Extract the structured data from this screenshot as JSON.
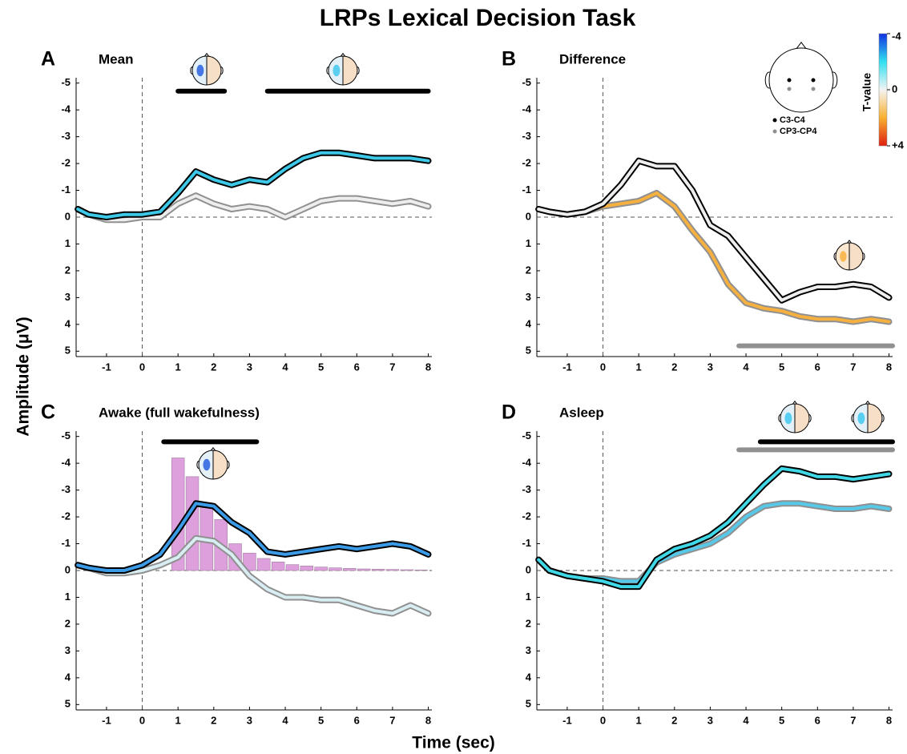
{
  "title": "LRPs Lexical Decision Task",
  "x_label": "Time (sec)",
  "y_label": "Amplitude (μV)",
  "legend": [
    {
      "name": "C3-C4",
      "color": "#000000"
    },
    {
      "name": "CP3-CP4",
      "color": "#909090"
    }
  ],
  "colorbar": {
    "label": "T-value",
    "lim": [
      -4,
      4
    ],
    "ticks": [
      -4,
      0,
      {
        "value": 4,
        "label": "+4"
      }
    ]
  },
  "chart_data": [
    {
      "type": "line",
      "letter": "A",
      "title": "Mean",
      "x": [
        -1.8,
        -1.5,
        -1,
        -0.5,
        0,
        0.5,
        1,
        1.5,
        2,
        2.5,
        3,
        3.5,
        4,
        4.5,
        5,
        5.5,
        6,
        6.5,
        7,
        7.5,
        8
      ],
      "series": [
        {
          "color": "#000000",
          "fill": "#3cc8e6",
          "values": [
            -0.3,
            -0.1,
            0,
            -0.1,
            -0.1,
            -0.2,
            -0.9,
            -1.7,
            -1.4,
            -1.2,
            -1.4,
            -1.3,
            -1.8,
            -2.2,
            -2.4,
            -2.4,
            -2.3,
            -2.2,
            -2.2,
            -2.2,
            -2.1
          ]
        },
        {
          "color": "#909090",
          "fill": "#eeeeee",
          "values": [
            -0.3,
            -0.1,
            0.1,
            0.1,
            0,
            0,
            -0.5,
            -0.8,
            -0.5,
            -0.3,
            -0.4,
            -0.3,
            0,
            -0.3,
            -0.6,
            -0.7,
            -0.7,
            -0.6,
            -0.5,
            -0.6,
            -0.4
          ]
        }
      ],
      "sig_bars": [
        {
          "start": 1.0,
          "end": 2.3,
          "y": -4.7,
          "color": "#000000"
        },
        {
          "start": 3.5,
          "end": 8.0,
          "y": -4.7,
          "color": "#000000"
        }
      ],
      "hline": 0,
      "vline": 0,
      "xlim": [
        -1.85,
        8.1
      ],
      "ylim": [
        5.2,
        -5.2
      ],
      "xticks": [
        -1,
        0,
        1,
        2,
        3,
        4,
        5,
        6,
        7,
        8
      ],
      "yticks": [
        -5,
        -4,
        -3,
        -2,
        -1,
        0,
        1,
        2,
        3,
        4,
        5
      ]
    },
    {
      "type": "line",
      "letter": "B",
      "title": "Difference",
      "x": [
        -1.8,
        -1.5,
        -1,
        -0.5,
        0,
        0.5,
        1,
        1.5,
        2,
        2.5,
        3,
        3.5,
        4,
        4.5,
        5,
        5.5,
        6,
        6.5,
        7,
        7.5,
        8
      ],
      "series": [
        {
          "color": "#000000",
          "fill": "#eeeeee",
          "values": [
            -0.3,
            -0.2,
            -0.1,
            -0.2,
            -0.5,
            -1.2,
            -2.1,
            -1.9,
            -1.9,
            -1,
            0.3,
            0.7,
            1.5,
            2.3,
            3.1,
            2.8,
            2.6,
            2.6,
            2.5,
            2.6,
            3
          ]
        },
        {
          "color": "#909090",
          "fill": "#f5b040",
          "values": [
            -0.3,
            -0.2,
            -0.1,
            -0.2,
            -0.4,
            -0.5,
            -0.6,
            -0.9,
            -0.4,
            0.5,
            1.3,
            2.5,
            3.2,
            3.4,
            3.5,
            3.7,
            3.8,
            3.8,
            3.9,
            3.8,
            3.9
          ]
        }
      ],
      "sig_bars": [
        {
          "start": 3.8,
          "end": 8.1,
          "y": 4.8,
          "color": "#909090"
        }
      ],
      "hline": 0,
      "vline": 0,
      "xlim": [
        -1.85,
        8.1
      ],
      "ylim": [
        5.2,
        -5.2
      ],
      "xticks": [
        -1,
        0,
        1,
        2,
        3,
        4,
        5,
        6,
        7,
        8
      ],
      "yticks": [
        -5,
        -4,
        -3,
        -2,
        -1,
        0,
        1,
        2,
        3,
        4,
        5
      ]
    },
    {
      "type": "line",
      "letter": "C",
      "title": "Awake (full wakefulness)",
      "x": [
        -1.8,
        -1.5,
        -1,
        -0.5,
        0,
        0.5,
        1,
        1.5,
        2,
        2.5,
        3,
        3.5,
        4,
        4.5,
        5,
        5.5,
        6,
        6.5,
        7,
        7.5,
        8
      ],
      "series": [
        {
          "color": "#000000",
          "fill": "#3c9be6",
          "values": [
            -0.2,
            -0.1,
            0,
            0,
            -0.2,
            -0.6,
            -1.5,
            -2.5,
            -2.4,
            -1.8,
            -1.4,
            -0.7,
            -0.6,
            -0.7,
            -0.8,
            -0.9,
            -0.8,
            -0.9,
            -1,
            -0.9,
            -0.6
          ]
        },
        {
          "color": "#909090",
          "fill": "#d8eef2",
          "values": [
            -0.2,
            -0.1,
            0.1,
            0.1,
            0,
            -0.2,
            -0.5,
            -1.2,
            -1.1,
            -0.6,
            0.2,
            0.7,
            1.0,
            1.0,
            1.1,
            1.1,
            1.3,
            1.5,
            1.6,
            1.3,
            1.6
          ]
        }
      ],
      "histogram": {
        "color": "#dda0dd",
        "bins": [
          0.8,
          1.2,
          1.6,
          2.0,
          2.4,
          2.8,
          3.2,
          3.6,
          4.0,
          4.4,
          4.8,
          5.2,
          5.6,
          6.0,
          6.4,
          6.8,
          7.2,
          7.6,
          8.0
        ],
        "values": [
          -4.2,
          -3.5,
          -2.5,
          -1.9,
          -1.0,
          -0.65,
          -0.45,
          -0.32,
          -0.22,
          -0.17,
          -0.13,
          -0.1,
          -0.08,
          -0.06,
          -0.05,
          -0.04,
          -0.03,
          -0.02
        ]
      },
      "sig_bars": [
        {
          "start": 0.6,
          "end": 3.2,
          "y": -4.8,
          "color": "#000000"
        }
      ],
      "hline": 0,
      "vline": 0,
      "xlim": [
        -1.85,
        8.1
      ],
      "ylim": [
        5.2,
        -5.2
      ],
      "xticks": [
        -1,
        0,
        1,
        2,
        3,
        4,
        5,
        6,
        7,
        8
      ],
      "yticks": [
        -5,
        -4,
        -3,
        -2,
        -1,
        0,
        1,
        2,
        3,
        4,
        5
      ]
    },
    {
      "type": "line",
      "letter": "D",
      "title": "Asleep",
      "x": [
        -1.8,
        -1.5,
        -1,
        -0.5,
        0,
        0.5,
        1,
        1.5,
        2,
        2.5,
        3,
        3.5,
        4,
        4.5,
        5,
        5.5,
        6,
        6.5,
        7,
        7.5,
        8
      ],
      "series": [
        {
          "color": "#000000",
          "fill": "#40d8e6",
          "values": [
            -0.4,
            0,
            0.2,
            0.3,
            0.4,
            0.6,
            0.6,
            -0.4,
            -0.8,
            -1.0,
            -1.3,
            -1.8,
            -2.5,
            -3.2,
            -3.8,
            -3.7,
            -3.5,
            -3.5,
            -3.4,
            -3.5,
            -3.6
          ]
        },
        {
          "color": "#909090",
          "fill": "#56c8e8",
          "values": [
            -0.4,
            0,
            0.2,
            0.3,
            0.3,
            0.4,
            0.4,
            -0.3,
            -0.6,
            -0.8,
            -1.0,
            -1.4,
            -2.0,
            -2.4,
            -2.5,
            -2.5,
            -2.4,
            -2.3,
            -2.3,
            -2.4,
            -2.3
          ]
        }
      ],
      "sig_bars": [
        {
          "start": 4.4,
          "end": 8.1,
          "y": -4.8,
          "color": "#000000"
        },
        {
          "start": 3.8,
          "end": 8.1,
          "y": -4.5,
          "color": "#909090"
        }
      ],
      "hline": 0,
      "vline": 0,
      "xlim": [
        -1.85,
        8.1
      ],
      "ylim": [
        5.2,
        -5.2
      ],
      "xticks": [
        -1,
        0,
        1,
        2,
        3,
        4,
        5,
        6,
        7,
        8
      ],
      "yticks": [
        -5,
        -4,
        -3,
        -2,
        -1,
        0,
        1,
        2,
        3,
        4,
        5
      ]
    }
  ]
}
